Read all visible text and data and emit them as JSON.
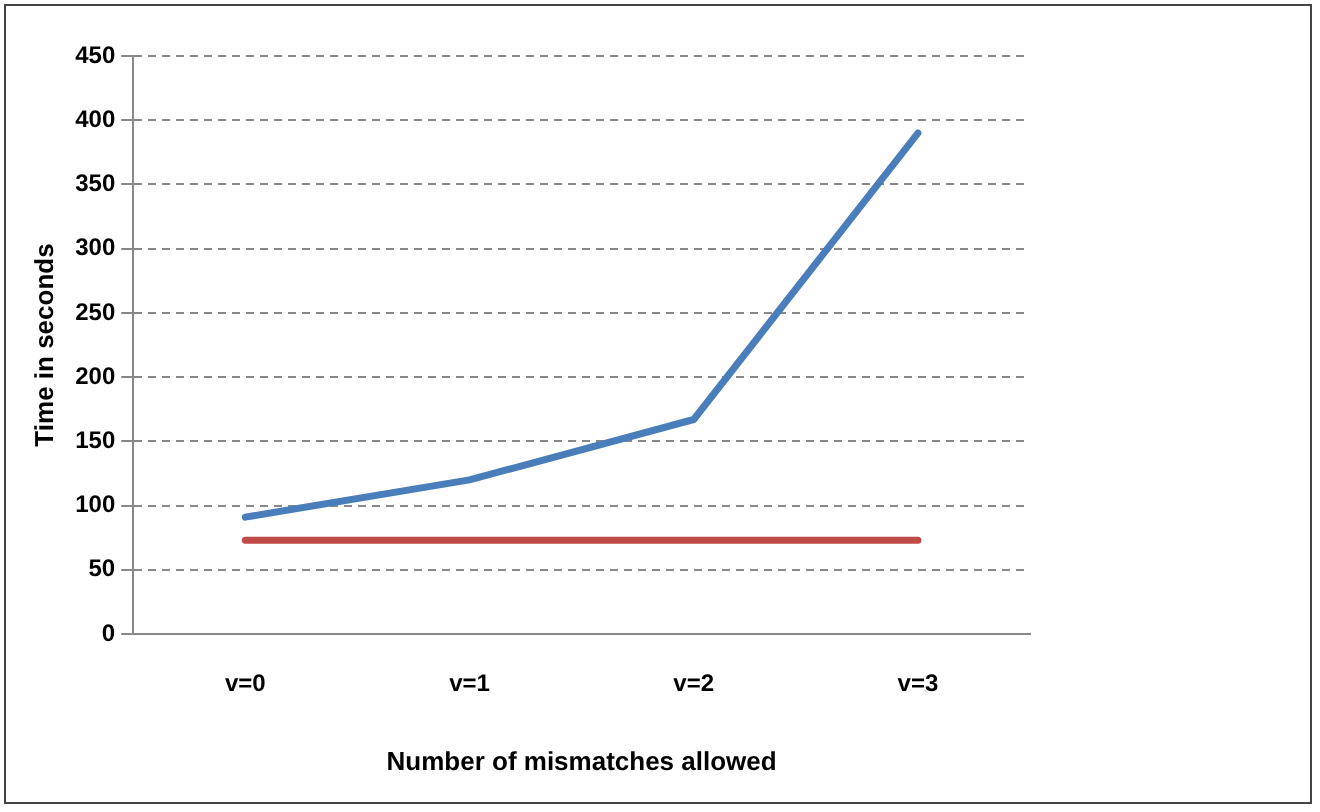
{
  "chart_data": {
    "type": "line",
    "xlabel": "Number of mismatches allowed",
    "ylabel": "Time in seconds",
    "categories": [
      "v=0",
      "v=1",
      "v=2",
      "v=3"
    ],
    "series": [
      {
        "color": "#4a7ebb",
        "values": [
          91,
          120,
          167,
          390
        ]
      },
      {
        "color": "#be4b48",
        "values": [
          73,
          73,
          73,
          73
        ]
      }
    ],
    "ylim": [
      0,
      450
    ],
    "yticks": [
      0,
      50,
      100,
      150,
      200,
      250,
      300,
      350,
      400,
      450
    ],
    "grid": "y",
    "legend": false,
    "marker": "none",
    "line_style": "solid"
  }
}
